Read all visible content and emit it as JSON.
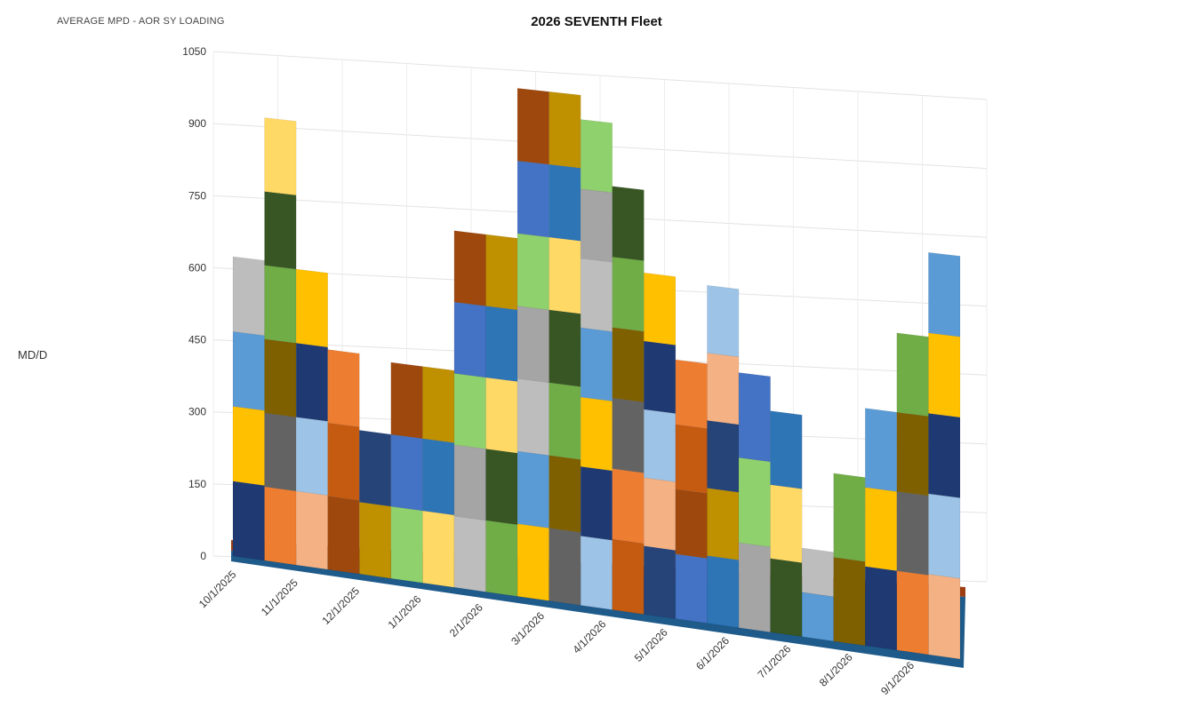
{
  "header": {
    "corner_label": "AVERAGE MPD - AOR SY LOADING",
    "title": "2026 SEVENTH Fleet"
  },
  "chart_data": {
    "type": "area",
    "title": "2026 SEVENTH Fleet",
    "xlabel": "",
    "ylabel": "MD/D",
    "ylim": [
      0,
      1050
    ],
    "yticks": [
      0,
      150,
      300,
      450,
      600,
      750,
      900,
      1050
    ],
    "x_tick_labels": [
      "10/1/2025",
      "11/1/2025",
      "12/1/2025",
      "1/1/2026",
      "2/1/2026",
      "3/1/2026",
      "4/1/2026",
      "5/1/2026",
      "6/1/2026",
      "7/1/2026",
      "8/1/2026",
      "9/1/2026"
    ],
    "grid": true,
    "legend": "none",
    "style": "3d-stacked-area",
    "stack_top_estimate": [
      {
        "x": "10/1/2025",
        "y": 630
      },
      {
        "x": "10/15/2025",
        "y": 930
      },
      {
        "x": "11/1/2025",
        "y": 620
      },
      {
        "x": "11/15/2025",
        "y": 460
      },
      {
        "x": "12/1/2025",
        "y": 300
      },
      {
        "x": "12/15/2025",
        "y": 450
      },
      {
        "x": "1/1/2026",
        "y": 450
      },
      {
        "x": "1/15/2026",
        "y": 740
      },
      {
        "x": "2/1/2026",
        "y": 740
      },
      {
        "x": "3/1/2026",
        "y": 1050
      },
      {
        "x": "4/1/2026",
        "y": 1050
      },
      {
        "x": "4/15/2026",
        "y": 1000
      },
      {
        "x": "5/1/2026",
        "y": 870
      },
      {
        "x": "5/15/2026",
        "y": 700
      },
      {
        "x": "6/1/2026",
        "y": 530
      },
      {
        "x": "6/15/2026",
        "y": 690
      },
      {
        "x": "7/1/2026",
        "y": 520
      },
      {
        "x": "7/15/2026",
        "y": 450
      },
      {
        "x": "8/1/2026",
        "y": 180
      },
      {
        "x": "8/15/2026",
        "y": 340
      },
      {
        "x": "9/1/2026",
        "y": 480
      },
      {
        "x": "9/15/2026",
        "y": 640
      },
      {
        "x": "9/30/2026",
        "y": 810
      }
    ]
  }
}
